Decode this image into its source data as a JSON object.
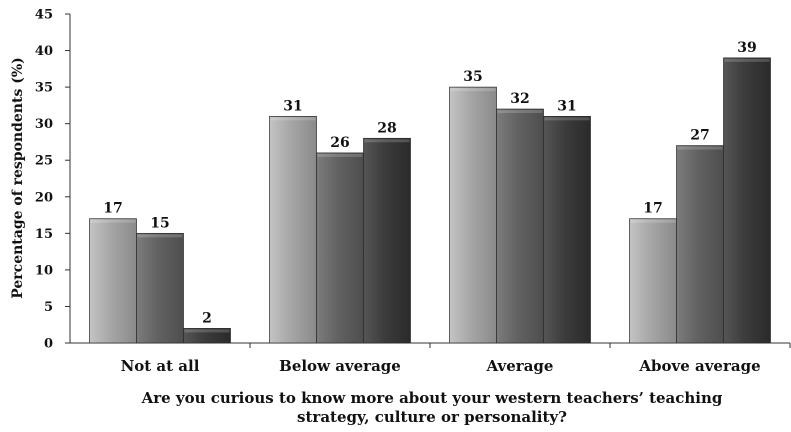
{
  "chart_data": {
    "type": "bar",
    "categories": [
      "Not at all",
      "Below average",
      "Average",
      "Above average"
    ],
    "series": [
      {
        "values": [
          17,
          31,
          35,
          17
        ],
        "color": "#9a9a9a"
      },
      {
        "values": [
          15,
          26,
          32,
          27
        ],
        "color": "#5e5e5e"
      },
      {
        "values": [
          2,
          28,
          31,
          39
        ],
        "color": "#3a3a3a"
      }
    ],
    "ylabel": "Percentage of respondents (%)",
    "xlabel_lines": [
      "Are you curious to know more about your western teachers’ teaching",
      "strategy, culture or personality?"
    ],
    "ylim": [
      0,
      45
    ],
    "yticks": [
      0,
      5,
      10,
      15,
      20,
      25,
      30,
      35,
      40,
      45
    ],
    "grid": false,
    "legend": "none",
    "data_labels": true
  }
}
